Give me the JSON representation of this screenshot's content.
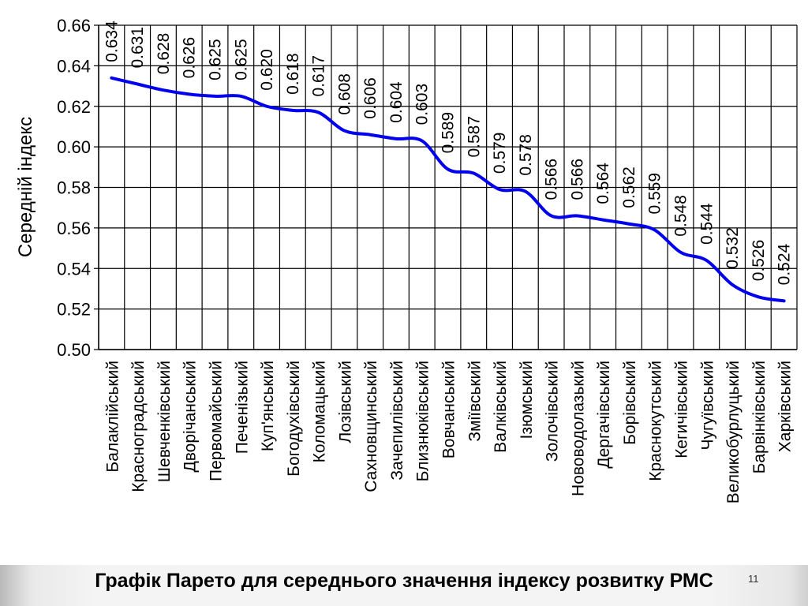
{
  "chart_data": {
    "type": "line",
    "title": "Графік Парето для середнього значення індексу розвитку РМС",
    "xlabel": "",
    "ylabel": "Середній індекс",
    "ylim": [
      0.5,
      0.66
    ],
    "yticks": [
      "0.50",
      "0.52",
      "0.54",
      "0.56",
      "0.58",
      "0.60",
      "0.62",
      "0.64",
      "0.66"
    ],
    "grid": true,
    "line_color": "#0000ee",
    "categories": [
      "Балаклійський",
      "Красноградський",
      "Шевченківський",
      "Дворічанський",
      "Первомайський",
      "Печенізький",
      "Куп'янський",
      "Богодухівський",
      "Коломацький",
      "Лозівський",
      "Сахновщинський",
      "Зачепилівський",
      "Близнюківський",
      "Вовчанський",
      "Зміївський",
      "Валківський",
      "Ізюмський",
      "Золочівський",
      "Нововодолазький",
      "Дергачівський",
      "Борівський",
      "Краснокутський",
      "Кегичівський",
      "Чугуївський",
      "Великобурлуцький",
      "Барвінківський",
      "Харківський"
    ],
    "values": [
      0.634,
      0.631,
      0.628,
      0.626,
      0.625,
      0.625,
      0.62,
      0.618,
      0.617,
      0.608,
      0.606,
      0.604,
      0.603,
      0.589,
      0.587,
      0.579,
      0.578,
      0.566,
      0.566,
      0.564,
      0.562,
      0.559,
      0.548,
      0.544,
      0.532,
      0.526,
      0.524
    ],
    "value_labels": [
      "0.634",
      "0.631",
      "0.628",
      "0.626",
      "0.625",
      "0.625",
      "0.620",
      "0.618",
      "0.617",
      "0.608",
      "0.606",
      "0.604",
      "0.603",
      "0.589",
      "0.587",
      "0.579",
      "0.578",
      "0.566",
      "0.566",
      "0.564",
      "0.562",
      "0.559",
      "0.548",
      "0.544",
      "0.532",
      "0.526",
      "0.524"
    ]
  },
  "slide_number": "11"
}
